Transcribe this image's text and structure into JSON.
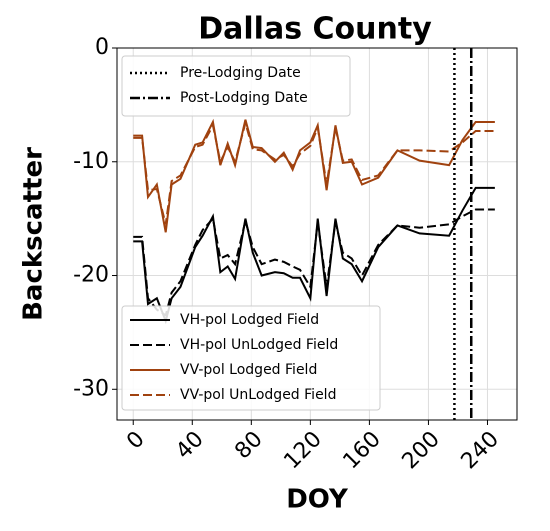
{
  "chart_data": {
    "type": "line",
    "title": "Dallas County",
    "x_label": "DOY",
    "y_label": "Backscatter",
    "xlim": [
      -11,
      260
    ],
    "ylim": [
      -32.7,
      0
    ],
    "xticks": [
      0,
      40,
      80,
      120,
      160,
      200,
      240
    ],
    "yticks": [
      0,
      -10,
      -20,
      -30
    ],
    "grid": true,
    "x": [
      0,
      6,
      10,
      16,
      22,
      26,
      32,
      42,
      47,
      54,
      59,
      64,
      69,
      76,
      81,
      87,
      96,
      102,
      108,
      113,
      120,
      125,
      131,
      137,
      142,
      148,
      155,
      166,
      179,
      194,
      214,
      223,
      232,
      245
    ],
    "series": [
      {
        "name": "VH-pol Lodged Field",
        "color": "#000000",
        "dash": "solid",
        "values": [
          -17,
          -17,
          -22.5,
          -22,
          -24,
          -22,
          -21,
          -17.5,
          -16.5,
          -14.8,
          -19.7,
          -19.2,
          -20.3,
          -15,
          -18,
          -20,
          -19.7,
          -19.8,
          -20.2,
          -20.2,
          -22,
          -15,
          -21.8,
          -15,
          -18.5,
          -19,
          -20.5,
          -17.5,
          -15.6,
          -16.3,
          -16.5,
          -14.3,
          -12.3,
          -12.3
        ]
      },
      {
        "name": "VH-pol UnLodged Field",
        "color": "#000000",
        "dash": "dashed",
        "values": [
          -16.6,
          -16.6,
          -22,
          -23,
          -23.5,
          -21.5,
          -20.5,
          -17.3,
          -16,
          -15,
          -18.5,
          -18.2,
          -19,
          -15.2,
          -17.5,
          -19,
          -18.6,
          -18.8,
          -19.2,
          -19.5,
          -21,
          -15.3,
          -21,
          -15.3,
          -18,
          -18.5,
          -20,
          -17.3,
          -15.6,
          -15.8,
          -15.5,
          -14.8,
          -14.2,
          -14.2
        ]
      },
      {
        "name": "VV-pol Lodged Field",
        "color": "#a0420f",
        "dash": "solid",
        "values": [
          -7.7,
          -7.7,
          -13.1,
          -12,
          -16.2,
          -12,
          -11.5,
          -8.5,
          -8.3,
          -6.5,
          -10.3,
          -8.4,
          -10.3,
          -6.3,
          -8.7,
          -8.8,
          -10,
          -9.2,
          -10.7,
          -9,
          -8.3,
          -6.8,
          -12.5,
          -6.8,
          -10.1,
          -10,
          -12,
          -11.4,
          -9,
          -9.9,
          -10.3,
          -8.1,
          -6.5,
          -6.5
        ]
      },
      {
        "name": "VV-pol UnLodged Field",
        "color": "#a0420f",
        "dash": "dashed",
        "values": [
          -7.9,
          -7.9,
          -12.5,
          -12.4,
          -15.5,
          -11.7,
          -11.2,
          -8.7,
          -8.5,
          -6.8,
          -10,
          -8.7,
          -10,
          -6.6,
          -8.9,
          -9,
          -9.8,
          -9.4,
          -10.4,
          -9.3,
          -8.6,
          -7,
          -12,
          -7,
          -9.9,
          -9.8,
          -11.6,
          -11.2,
          -9,
          -9,
          -9.1,
          -8.3,
          -7.3,
          -7.3
        ]
      }
    ],
    "vlines": [
      {
        "name": "Pre-Lodging Date",
        "x": 217.6,
        "dash": "dotted"
      },
      {
        "name": "Post-Lodging Date",
        "x": 229,
        "dash": "dashdot"
      }
    ]
  }
}
